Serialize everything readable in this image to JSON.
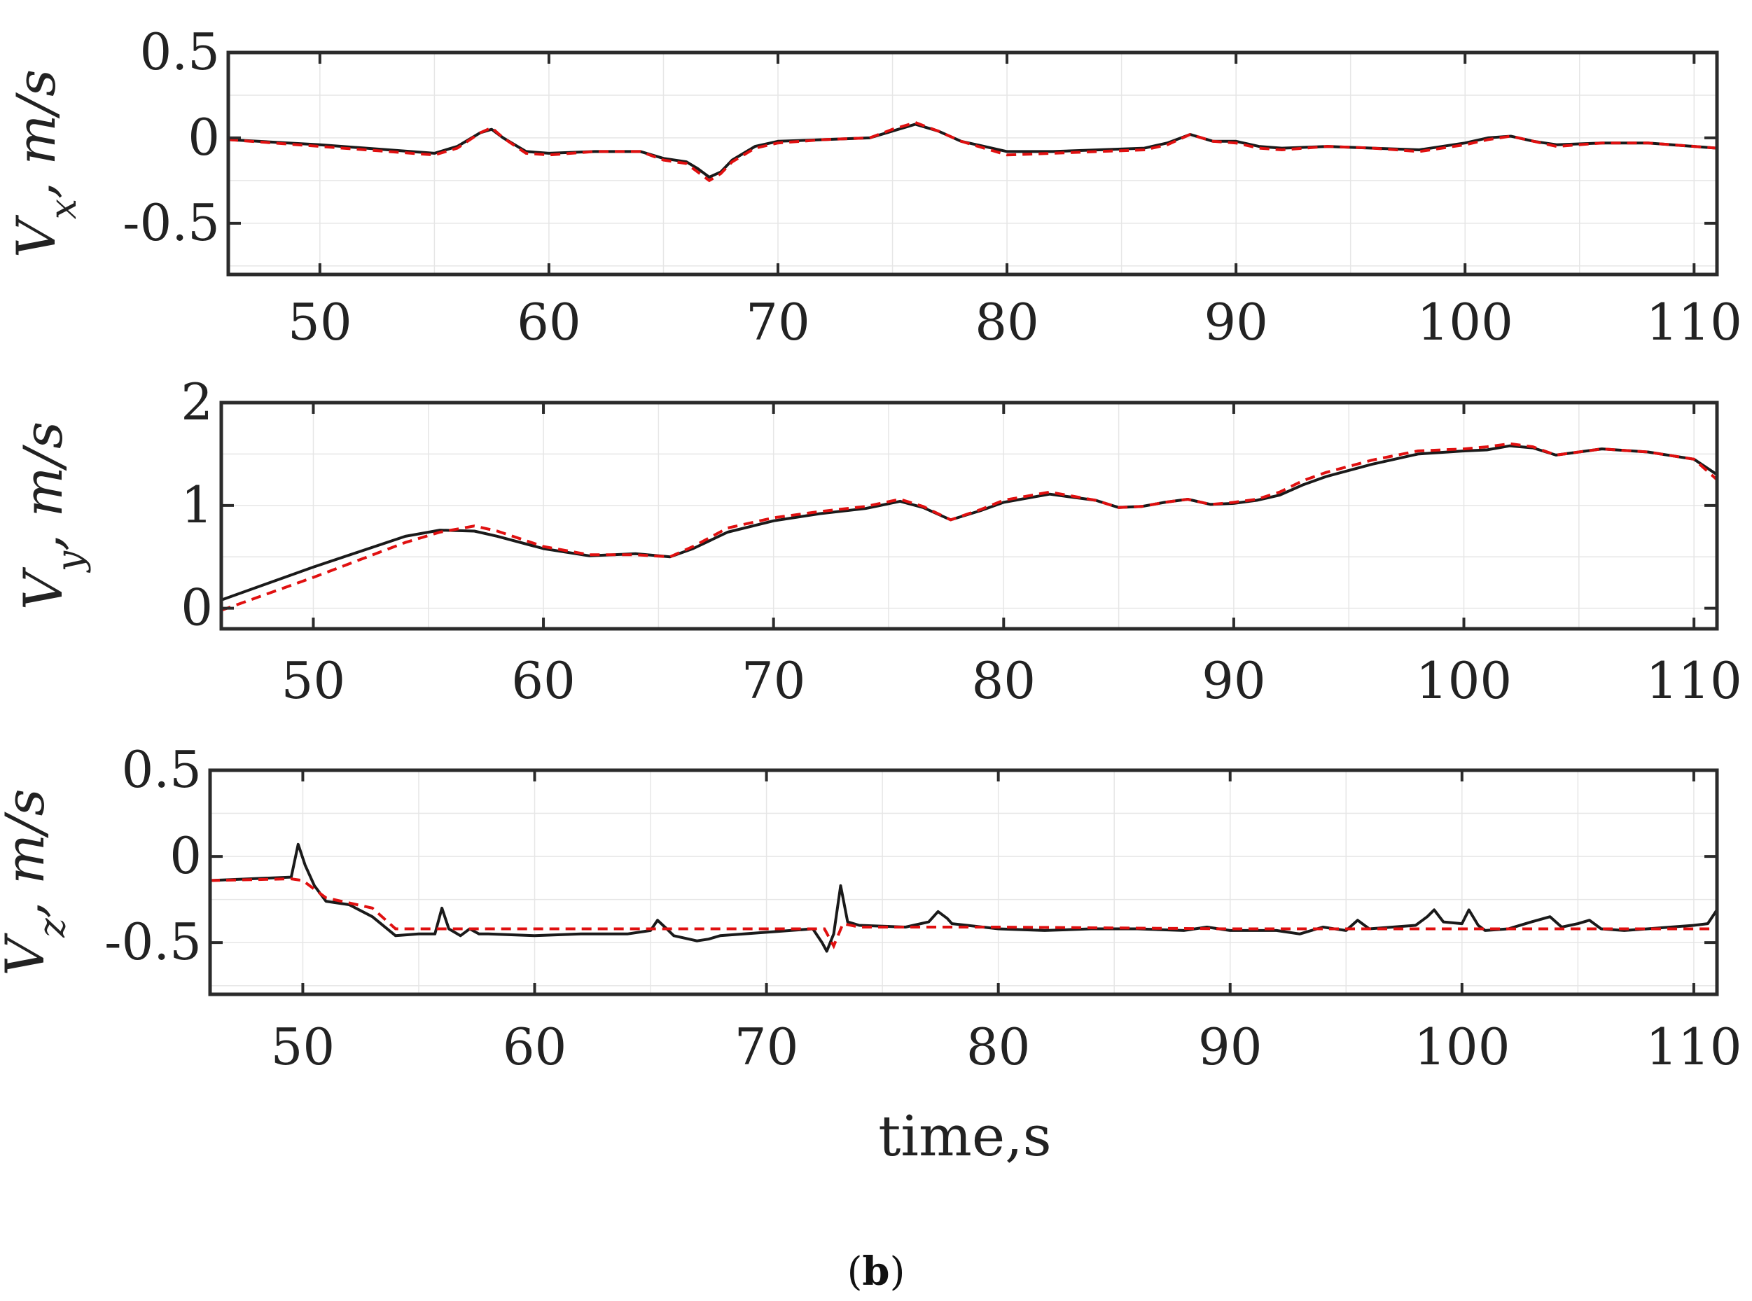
{
  "figure": {
    "caption_open": "(",
    "caption_letter": "b",
    "caption_close": ")"
  },
  "colors": {
    "actual": "#1a1a1a",
    "reference": "#e01010",
    "axis": "#2b2b2b"
  },
  "chart_data": [
    {
      "type": "line",
      "ylabel": "Vx, m/s",
      "xlabel": "",
      "xlim": [
        46,
        111
      ],
      "ylim": [
        -0.8,
        0.5
      ],
      "x_ticks": [
        50,
        60,
        70,
        80,
        90,
        100,
        110
      ],
      "x_tick_labels": [
        "50",
        "60",
        "70",
        "80",
        "90",
        "100",
        "110"
      ],
      "y_ticks": [
        0.5,
        0,
        -0.5
      ],
      "y_tick_labels": [
        "0.5",
        "0",
        "-0.5"
      ],
      "grid": true,
      "series": [
        {
          "style": "solid",
          "x": [
            46,
            50,
            55,
            56,
            57,
            57.5,
            58,
            59,
            60,
            62,
            64,
            65,
            66,
            66.5,
            67,
            67.5,
            68,
            69,
            70,
            72,
            74,
            75,
            76,
            77,
            78,
            79,
            80,
            82,
            84,
            86,
            87,
            88,
            89,
            90,
            91,
            92,
            94,
            96,
            98,
            100,
            101,
            102,
            103,
            104,
            106,
            108,
            110,
            111
          ],
          "y": [
            -0.01,
            -0.04,
            -0.09,
            -0.05,
            0.03,
            0.05,
            0.0,
            -0.08,
            -0.09,
            -0.08,
            -0.08,
            -0.12,
            -0.14,
            -0.18,
            -0.23,
            -0.2,
            -0.13,
            -0.05,
            -0.02,
            -0.01,
            0.0,
            0.04,
            0.08,
            0.04,
            -0.02,
            -0.05,
            -0.08,
            -0.08,
            -0.07,
            -0.06,
            -0.03,
            0.02,
            -0.02,
            -0.02,
            -0.05,
            -0.06,
            -0.05,
            -0.06,
            -0.07,
            -0.03,
            0.0,
            0.01,
            -0.02,
            -0.04,
            -0.03,
            -0.03,
            -0.05,
            -0.06
          ]
        },
        {
          "style": "dashed",
          "x": [
            46,
            50,
            55,
            56,
            57,
            57.5,
            58,
            59,
            60,
            62,
            64,
            65,
            66,
            66.5,
            67,
            67.5,
            68,
            69,
            70,
            72,
            74,
            75,
            76,
            77,
            78,
            79,
            80,
            82,
            84,
            86,
            87,
            88,
            89,
            90,
            91,
            92,
            94,
            96,
            98,
            100,
            101,
            102,
            103,
            104,
            106,
            108,
            110,
            111
          ],
          "y": [
            -0.01,
            -0.05,
            -0.1,
            -0.06,
            0.03,
            0.06,
            0.0,
            -0.09,
            -0.1,
            -0.08,
            -0.08,
            -0.13,
            -0.15,
            -0.2,
            -0.25,
            -0.21,
            -0.14,
            -0.06,
            -0.03,
            -0.01,
            0.0,
            0.05,
            0.09,
            0.04,
            -0.02,
            -0.06,
            -0.1,
            -0.09,
            -0.08,
            -0.07,
            -0.04,
            0.02,
            -0.02,
            -0.03,
            -0.06,
            -0.07,
            -0.05,
            -0.06,
            -0.08,
            -0.04,
            -0.01,
            0.01,
            -0.02,
            -0.05,
            -0.03,
            -0.03,
            -0.05,
            -0.06
          ]
        }
      ]
    },
    {
      "type": "line",
      "ylabel": "Vy, m/s",
      "xlabel": "",
      "xlim": [
        46,
        111
      ],
      "ylim": [
        -0.2,
        2
      ],
      "x_ticks": [
        50,
        60,
        70,
        80,
        90,
        100,
        110
      ],
      "x_tick_labels": [
        "50",
        "60",
        "70",
        "80",
        "90",
        "100",
        "110"
      ],
      "y_ticks": [
        2,
        1,
        0
      ],
      "y_tick_labels": [
        "2",
        "1",
        "0"
      ],
      "grid": true,
      "series": [
        {
          "style": "solid",
          "x": [
            46,
            50,
            54,
            55.5,
            57,
            58,
            60,
            62,
            64,
            65.5,
            66.5,
            68,
            70,
            72,
            74,
            75.5,
            76.5,
            77.7,
            79,
            80,
            82,
            84,
            85,
            86,
            87,
            88,
            89,
            90,
            91,
            92,
            93,
            94,
            96,
            98,
            100,
            101,
            102,
            103,
            104,
            105,
            106,
            108,
            110,
            111
          ],
          "y": [
            0.08,
            0.4,
            0.7,
            0.76,
            0.75,
            0.7,
            0.58,
            0.51,
            0.53,
            0.5,
            0.58,
            0.74,
            0.85,
            0.92,
            0.97,
            1.04,
            0.98,
            0.86,
            0.95,
            1.03,
            1.11,
            1.05,
            0.98,
            0.99,
            1.03,
            1.06,
            1.01,
            1.02,
            1.05,
            1.1,
            1.2,
            1.28,
            1.4,
            1.5,
            1.53,
            1.54,
            1.58,
            1.56,
            1.49,
            1.52,
            1.55,
            1.52,
            1.45,
            1.3
          ]
        },
        {
          "style": "dashed",
          "x": [
            46,
            50,
            54,
            55.5,
            57,
            58,
            60,
            62,
            64,
            65.5,
            66.5,
            68,
            70,
            72,
            74,
            75.5,
            76.5,
            77.7,
            79,
            80,
            82,
            84,
            85,
            86,
            87,
            88,
            89,
            90,
            91,
            92,
            93,
            94,
            96,
            98,
            100,
            101,
            102,
            103,
            104,
            105,
            106,
            108,
            110,
            111
          ],
          "y": [
            -0.02,
            0.3,
            0.64,
            0.74,
            0.8,
            0.75,
            0.6,
            0.52,
            0.52,
            0.5,
            0.6,
            0.78,
            0.88,
            0.94,
            0.99,
            1.06,
            0.99,
            0.86,
            0.96,
            1.05,
            1.13,
            1.05,
            0.98,
            0.99,
            1.03,
            1.06,
            1.01,
            1.03,
            1.06,
            1.13,
            1.24,
            1.32,
            1.44,
            1.53,
            1.55,
            1.57,
            1.6,
            1.57,
            1.49,
            1.52,
            1.55,
            1.52,
            1.45,
            1.25
          ]
        }
      ]
    },
    {
      "type": "line",
      "ylabel": "Vz, m/s",
      "xlabel": "time,s",
      "xlim": [
        46,
        111
      ],
      "ylim": [
        -0.8,
        0.5
      ],
      "x_ticks": [
        50,
        60,
        70,
        80,
        90,
        100,
        110
      ],
      "x_tick_labels": [
        "50",
        "60",
        "70",
        "80",
        "90",
        "100",
        "110"
      ],
      "y_ticks": [
        0.5,
        0,
        -0.5
      ],
      "y_tick_labels": [
        "0.5",
        "0",
        "-0.5"
      ],
      "grid": true,
      "series": [
        {
          "style": "solid",
          "x": [
            46,
            49.5,
            49.8,
            50.1,
            50.5,
            51,
            52,
            53,
            54,
            55,
            55.7,
            56,
            56.3,
            56.8,
            57.2,
            57.6,
            58,
            60,
            62,
            64,
            65,
            65.3,
            65.7,
            66,
            67,
            67.5,
            68,
            70,
            72,
            72.4,
            72.6,
            72.9,
            73.2,
            73.5,
            74,
            76,
            77,
            77.4,
            77.8,
            78,
            80,
            82,
            84,
            86,
            88,
            89,
            90,
            92,
            93,
            94,
            95,
            95.5,
            96,
            97,
            98,
            98.5,
            98.8,
            99.2,
            100,
            100.3,
            100.7,
            101,
            102,
            103,
            103.8,
            104.3,
            105,
            105.5,
            106,
            107,
            108,
            109,
            110,
            110.6,
            111
          ],
          "y": [
            -0.14,
            -0.12,
            0.07,
            -0.05,
            -0.17,
            -0.26,
            -0.28,
            -0.35,
            -0.46,
            -0.45,
            -0.45,
            -0.3,
            -0.42,
            -0.46,
            -0.42,
            -0.45,
            -0.45,
            -0.46,
            -0.45,
            -0.45,
            -0.43,
            -0.37,
            -0.42,
            -0.46,
            -0.49,
            -0.48,
            -0.46,
            -0.44,
            -0.42,
            -0.5,
            -0.55,
            -0.45,
            -0.17,
            -0.38,
            -0.4,
            -0.41,
            -0.38,
            -0.32,
            -0.36,
            -0.39,
            -0.42,
            -0.43,
            -0.42,
            -0.42,
            -0.43,
            -0.41,
            -0.43,
            -0.43,
            -0.45,
            -0.41,
            -0.43,
            -0.37,
            -0.42,
            -0.41,
            -0.4,
            -0.35,
            -0.31,
            -0.38,
            -0.39,
            -0.31,
            -0.4,
            -0.43,
            -0.42,
            -0.38,
            -0.35,
            -0.41,
            -0.39,
            -0.37,
            -0.42,
            -0.43,
            -0.42,
            -0.41,
            -0.4,
            -0.39,
            -0.31
          ]
        },
        {
          "style": "dashed",
          "x": [
            46,
            49.5,
            50,
            51,
            52,
            53,
            54,
            60,
            65,
            70,
            72.5,
            72.9,
            73.3,
            74,
            80,
            90,
            100,
            111
          ],
          "y": [
            -0.14,
            -0.13,
            -0.14,
            -0.24,
            -0.27,
            -0.3,
            -0.42,
            -0.42,
            -0.42,
            -0.42,
            -0.42,
            -0.52,
            -0.39,
            -0.41,
            -0.41,
            -0.42,
            -0.42,
            -0.42
          ]
        }
      ]
    }
  ]
}
